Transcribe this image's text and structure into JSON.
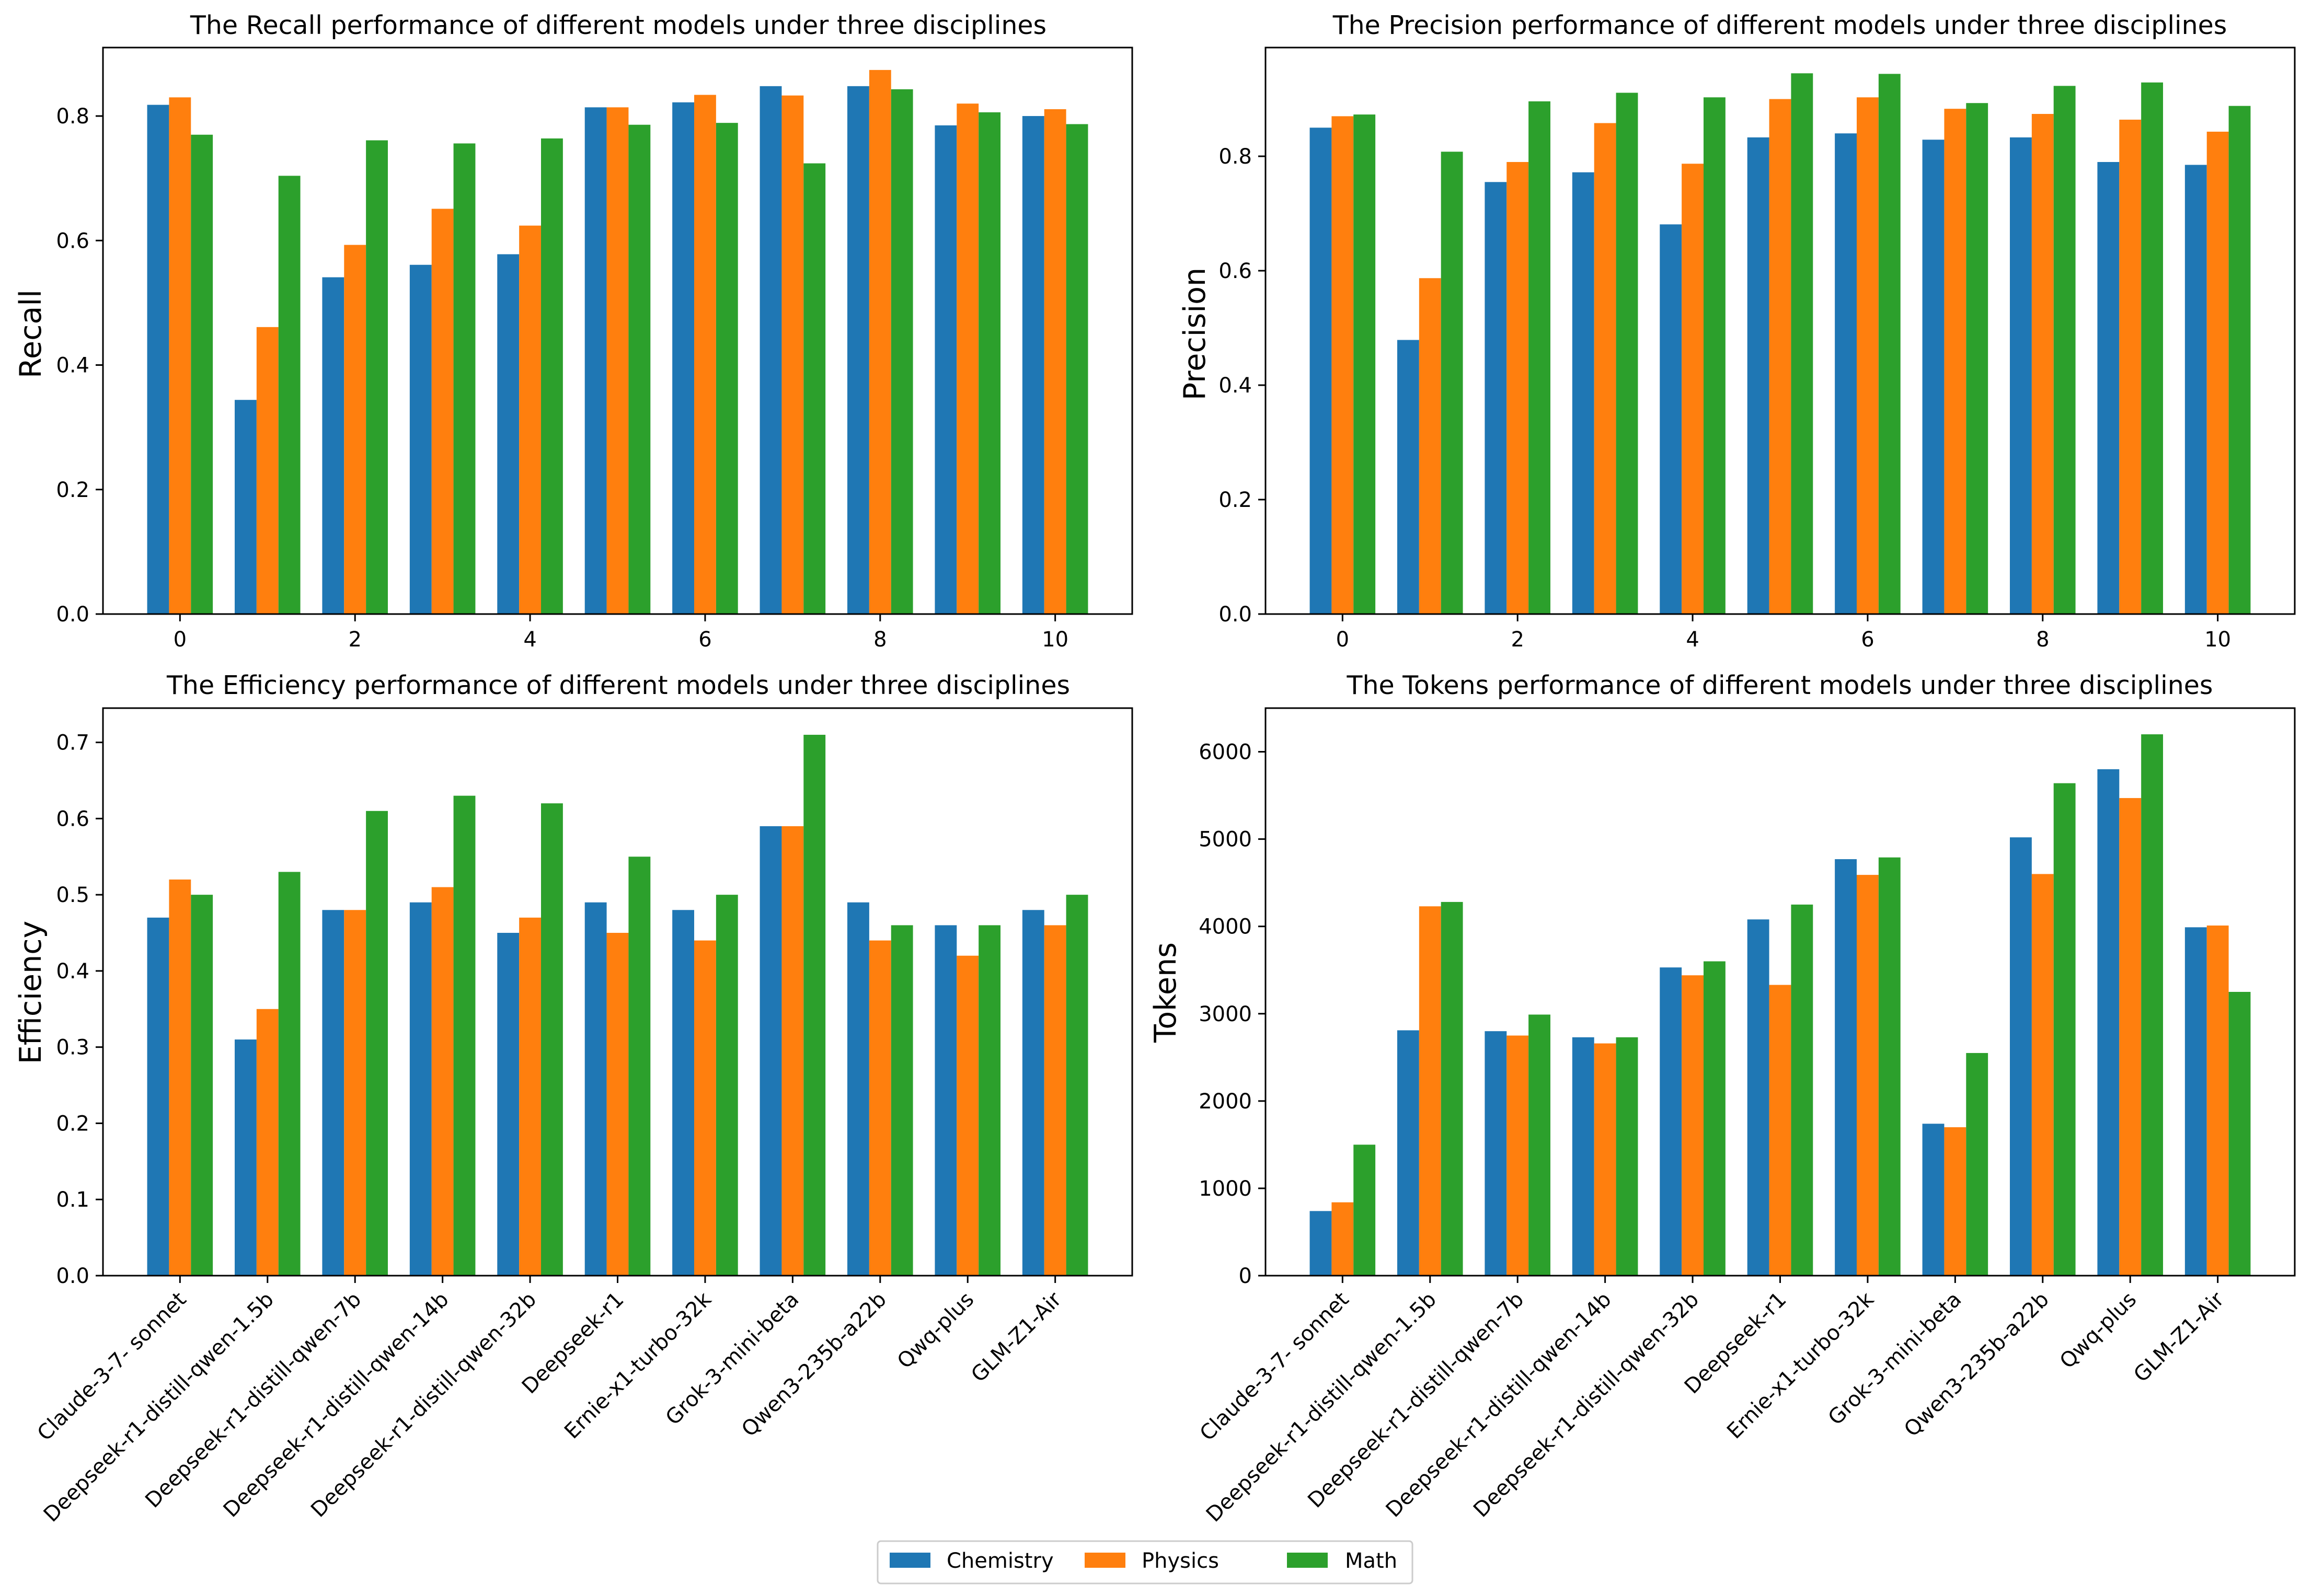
{
  "colors": {
    "Chemistry": "#1f77b4",
    "Physics": "#ff7f0e",
    "Math": "#2ca02c"
  },
  "legend": {
    "placement": "bottom-center",
    "entries": [
      "Chemistry",
      "Physics",
      "Math"
    ]
  },
  "chart_data": [
    {
      "id": "recall",
      "type": "bar",
      "title": "The Recall performance of different models under three disciplines",
      "xlabel": "",
      "ylabel": "Recall",
      "ylim": [
        0,
        0.91
      ],
      "yticks": [
        "0.0",
        "0.2",
        "0.4",
        "0.6",
        "0.8"
      ],
      "xticks": [
        "0",
        "2",
        "4",
        "6",
        "8",
        "10"
      ],
      "categories": [
        "0",
        "1",
        "2",
        "3",
        "4",
        "5",
        "6",
        "7",
        "8",
        "9",
        "10"
      ],
      "series": [
        {
          "name": "Chemistry",
          "values": [
            0.818,
            0.344,
            0.541,
            0.561,
            0.578,
            0.814,
            0.822,
            0.848,
            0.848,
            0.785,
            0.8
          ]
        },
        {
          "name": "Physics",
          "values": [
            0.83,
            0.461,
            0.593,
            0.651,
            0.624,
            0.814,
            0.834,
            0.833,
            0.874,
            0.82,
            0.811
          ]
        },
        {
          "name": "Math",
          "values": [
            0.77,
            0.704,
            0.761,
            0.756,
            0.764,
            0.786,
            0.789,
            0.724,
            0.843,
            0.806,
            0.787
          ]
        }
      ]
    },
    {
      "id": "precision",
      "type": "bar",
      "title": "The Precision performance of different models under three disciplines",
      "xlabel": "",
      "ylabel": "Precision",
      "ylim": [
        0,
        0.99
      ],
      "yticks": [
        "0.0",
        "0.2",
        "0.4",
        "0.6",
        "0.8"
      ],
      "xticks": [
        "0",
        "2",
        "4",
        "6",
        "8",
        "10"
      ],
      "categories": [
        "0",
        "1",
        "2",
        "3",
        "4",
        "5",
        "6",
        "7",
        "8",
        "9",
        "10"
      ],
      "series": [
        {
          "name": "Chemistry",
          "values": [
            0.85,
            0.479,
            0.755,
            0.772,
            0.681,
            0.833,
            0.84,
            0.829,
            0.833,
            0.79,
            0.785
          ]
        },
        {
          "name": "Physics",
          "values": [
            0.87,
            0.587,
            0.79,
            0.858,
            0.787,
            0.9,
            0.903,
            0.883,
            0.874,
            0.864,
            0.843
          ]
        },
        {
          "name": "Math",
          "values": [
            0.873,
            0.808,
            0.896,
            0.911,
            0.903,
            0.945,
            0.944,
            0.893,
            0.923,
            0.929,
            0.888
          ]
        }
      ]
    },
    {
      "id": "efficiency",
      "type": "bar",
      "title": "The Efficiency performance of different models under three disciplines",
      "xlabel": "",
      "ylabel": "Efficiency",
      "ylim": [
        0,
        0.745
      ],
      "yticks": [
        "0.0",
        "0.1",
        "0.2",
        "0.3",
        "0.4",
        "0.5",
        "0.6",
        "0.7"
      ],
      "categories": [
        "Claude-3-7- sonnet",
        "Deepseek-r1-distill-qwen-1.5b",
        "Deepseek-r1-distill-qwen-7b",
        "Deepseek-r1-distill-qwen-14b",
        "Deepseek-r1-distill-qwen-32b",
        "Deepseek-r1",
        "Ernie-x1-turbo-32k",
        "Grok-3-mini-beta",
        "Qwen3-235b-a22b",
        "Qwq-plus",
        "GLM-Z1-Air"
      ],
      "series": [
        {
          "name": "Chemistry",
          "values": [
            0.47,
            0.31,
            0.48,
            0.49,
            0.45,
            0.49,
            0.48,
            0.59,
            0.49,
            0.46,
            0.48
          ]
        },
        {
          "name": "Physics",
          "values": [
            0.52,
            0.35,
            0.48,
            0.51,
            0.47,
            0.45,
            0.44,
            0.59,
            0.44,
            0.42,
            0.46
          ]
        },
        {
          "name": "Math",
          "values": [
            0.5,
            0.53,
            0.61,
            0.63,
            0.62,
            0.55,
            0.5,
            0.71,
            0.46,
            0.46,
            0.5
          ]
        }
      ]
    },
    {
      "id": "tokens",
      "type": "bar",
      "title": "The Tokens performance of different models under three disciplines",
      "xlabel": "",
      "ylabel": "Tokens",
      "ylim": [
        0,
        6500
      ],
      "yticks": [
        "0",
        "1000",
        "2000",
        "3000",
        "4000",
        "5000",
        "6000"
      ],
      "categories": [
        "Claude-3-7- sonnet",
        "Deepseek-r1-distill-qwen-1.5b",
        "Deepseek-r1-distill-qwen-7b",
        "Deepseek-r1-distill-qwen-14b",
        "Deepseek-r1-distill-qwen-32b",
        "Deepseek-r1",
        "Ernie-x1-turbo-32k",
        "Grok-3-mini-beta",
        "Qwen3-235b-a22b",
        "Qwq-plus",
        "GLM-Z1-Air"
      ],
      "series": [
        {
          "name": "Chemistry",
          "values": [
            740,
            2810,
            2800,
            2730,
            3530,
            4080,
            4770,
            1740,
            5020,
            5800,
            3990
          ]
        },
        {
          "name": "Physics",
          "values": [
            840,
            4230,
            2750,
            2660,
            3440,
            3330,
            4590,
            1700,
            4600,
            5470,
            4010
          ]
        },
        {
          "name": "Math",
          "values": [
            1500,
            4280,
            2990,
            2730,
            3600,
            4250,
            4790,
            2550,
            5640,
            6200,
            3250
          ]
        }
      ]
    }
  ]
}
